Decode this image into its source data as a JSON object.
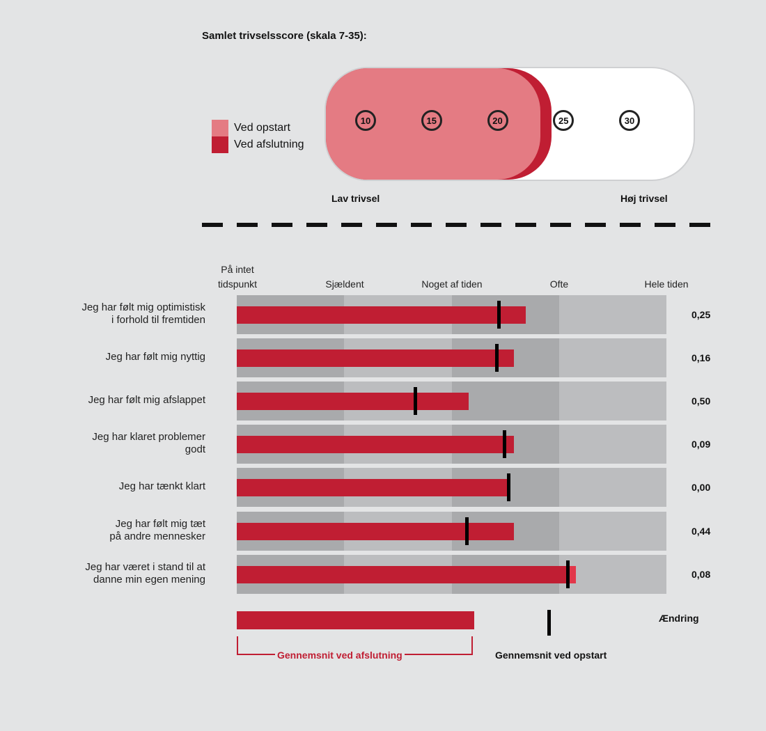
{
  "total": {
    "title": "Samlet trivselsscore (skala 7-35):",
    "legend": [
      {
        "label": "Ved opstart",
        "color": "#e47b83"
      },
      {
        "label": "Ved afslutning",
        "color": "#c01e33"
      }
    ],
    "scale_ticks": [
      "10",
      "15",
      "20",
      "25",
      "30"
    ],
    "start_score": 20.6,
    "end_score": 21.6,
    "low_label": "Lav trivsel",
    "high_label": "Høj trivsel"
  },
  "chart_data": {
    "type": "bar",
    "x_axis_labels": [
      "På intet\ntidspunkt",
      "Sjældent",
      "Noget af tiden",
      "Ofte",
      "Hele tiden"
    ],
    "xlim": [
      1,
      5
    ],
    "categories": [
      "Jeg har følt mig optimistisk\ni forhold til fremtiden",
      "Jeg har følt mig nyttig",
      "Jeg har følt mig afslappet",
      "Jeg har klaret problemer\ngodt",
      "Jeg har tænkt klart",
      "Jeg har følt mig tæt\npå andre mennesker",
      "Jeg har været i stand til at\ndanne min egen mening"
    ],
    "series": [
      {
        "name": "Gennemsnit ved afslutning",
        "values": [
          3.69,
          3.58,
          3.16,
          3.58,
          3.53,
          3.58,
          4.16
        ]
      },
      {
        "name": "Gennemsnit ved opstart",
        "values": [
          3.44,
          3.42,
          2.66,
          3.49,
          3.53,
          3.14,
          4.08
        ]
      }
    ],
    "change_label": "Ændring",
    "change_values": [
      "0,25",
      "0,16",
      "0,50",
      "0,09",
      "0,00",
      "0,44",
      "0,08"
    ]
  },
  "colors": {
    "accent": "#c01e33",
    "start_fill": "#e47b83",
    "bar_highlight": "#e2374a",
    "band_dark": "#a9aaac",
    "band_light": "#bcbdbf"
  },
  "key": {
    "end_label": "Gennemsnit ved afslutning",
    "start_label": "Gennemsnit ved opstart"
  }
}
